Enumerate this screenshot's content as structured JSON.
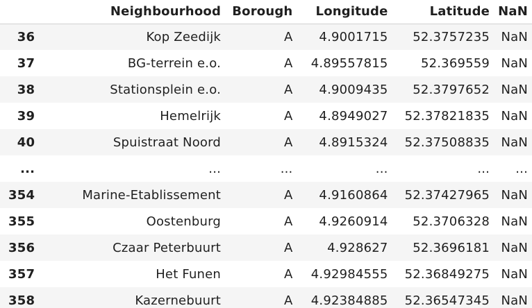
{
  "columns": {
    "index": "",
    "neighbourhood": "Neighbourhood",
    "borough": "Borough",
    "longitude": "Longitude",
    "latitude": "Latitude",
    "nan": "NaN"
  },
  "rows": [
    {
      "index": "36",
      "neighbourhood": "Kop Zeedijk",
      "borough": "A",
      "longitude": "4.9001715",
      "latitude": "52.3757235",
      "nan": "NaN"
    },
    {
      "index": "37",
      "neighbourhood": "BG-terrein e.o.",
      "borough": "A",
      "longitude": "4.89557815",
      "latitude": "52.369559",
      "nan": "NaN"
    },
    {
      "index": "38",
      "neighbourhood": "Stationsplein e.o.",
      "borough": "A",
      "longitude": "4.9009435",
      "latitude": "52.3797652",
      "nan": "NaN"
    },
    {
      "index": "39",
      "neighbourhood": "Hemelrijk",
      "borough": "A",
      "longitude": "4.8949027",
      "latitude": "52.37821835",
      "nan": "NaN"
    },
    {
      "index": "40",
      "neighbourhood": "Spuistraat Noord",
      "borough": "A",
      "longitude": "4.8915324",
      "latitude": "52.37508835",
      "nan": "NaN"
    },
    {
      "index": "...",
      "neighbourhood": "...",
      "borough": "...",
      "longitude": "...",
      "latitude": "...",
      "nan": "..."
    },
    {
      "index": "354",
      "neighbourhood": "Marine-Etablissement",
      "borough": "A",
      "longitude": "4.9160864",
      "latitude": "52.37427965",
      "nan": "NaN"
    },
    {
      "index": "355",
      "neighbourhood": "Oostenburg",
      "borough": "A",
      "longitude": "4.9260914",
      "latitude": "52.3706328",
      "nan": "NaN"
    },
    {
      "index": "356",
      "neighbourhood": "Czaar Peterbuurt",
      "borough": "A",
      "longitude": "4.928627",
      "latitude": "52.3696181",
      "nan": "NaN"
    },
    {
      "index": "357",
      "neighbourhood": "Het Funen",
      "borough": "A",
      "longitude": "4.92984555",
      "latitude": "52.36849275",
      "nan": "NaN"
    },
    {
      "index": "358",
      "neighbourhood": "Kazernebuurt",
      "borough": "A",
      "longitude": "4.92384885",
      "latitude": "52.36547345",
      "nan": "NaN"
    }
  ]
}
